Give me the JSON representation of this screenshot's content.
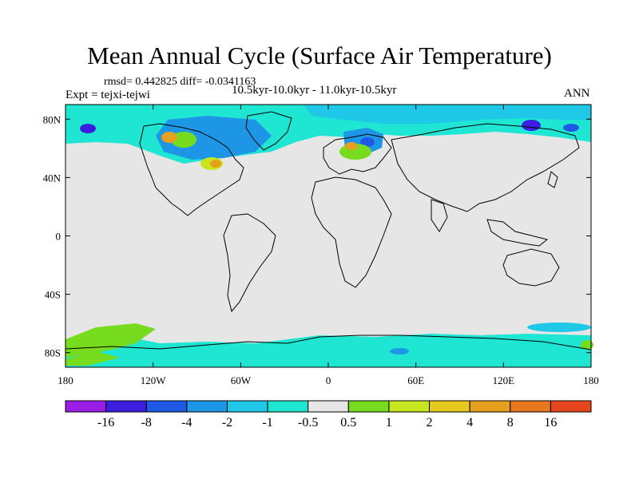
{
  "title": "Mean Annual Cycle (Surface Air Temperature)",
  "stats": "rmsd= 0.442825 diff= -0.0341163",
  "experiment": "Expt = tejxi-tejwi",
  "period": "10.5kyr-10.0kyr - 11.0kyr-10.5kyr",
  "season": "ANN",
  "map": {
    "projection": "cylindrical equidistant",
    "lon_range": [
      -180,
      180
    ],
    "lat_range": [
      -90,
      90
    ],
    "background_color": "#e6e6e6",
    "lat_ticks": [
      {
        "value": 80,
        "label": "80N"
      },
      {
        "value": 40,
        "label": "40N"
      },
      {
        "value": 0,
        "label": "0"
      },
      {
        "value": -40,
        "label": "40S"
      },
      {
        "value": -80,
        "label": "80S"
      }
    ],
    "lon_ticks": [
      {
        "value": -180,
        "label": "180"
      },
      {
        "value": -120,
        "label": "120W"
      },
      {
        "value": -60,
        "label": "60W"
      },
      {
        "value": 0,
        "label": "0"
      },
      {
        "value": 60,
        "label": "60E"
      },
      {
        "value": 120,
        "label": "120E"
      },
      {
        "value": 180,
        "label": "180"
      }
    ]
  },
  "colorbar": {
    "colors": [
      "#9a1ee6",
      "#3c1ee0",
      "#1e5ae6",
      "#1e96e6",
      "#1ec8e6",
      "#1ee6d2",
      "#e6e6e6",
      "#78dc1e",
      "#c8e61e",
      "#e6c81e",
      "#e6a01e",
      "#e6781e",
      "#e6461e"
    ],
    "labels": [
      "-16",
      "-8",
      "-4",
      "-2",
      "-1",
      "-0.5",
      "0.5",
      "1",
      "2",
      "4",
      "8",
      "16"
    ]
  }
}
